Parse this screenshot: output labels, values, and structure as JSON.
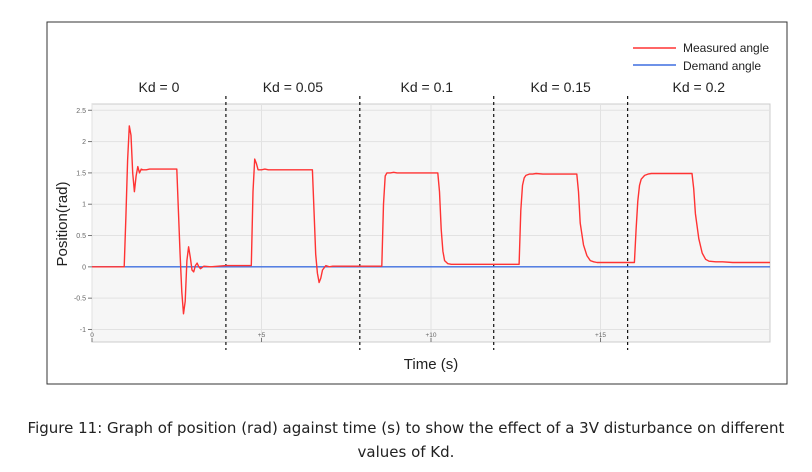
{
  "chart_data": {
    "type": "line",
    "title": "",
    "xlabel": "Time (s)",
    "ylabel": "Position(rad)",
    "xlim": [
      0,
      20
    ],
    "ylim": [
      -1.2,
      2.6
    ],
    "grid": true,
    "legend_position": "top-right",
    "x_ticks": [
      {
        "value": 0,
        "label": "0"
      },
      {
        "value": 5,
        "label": "+5"
      },
      {
        "value": 10,
        "label": "+10"
      },
      {
        "value": 15,
        "label": "+15"
      }
    ],
    "y_ticks": [
      {
        "value": 2.5,
        "label": "2.5"
      },
      {
        "value": 2,
        "label": "2"
      },
      {
        "value": 1.5,
        "label": "1.5"
      },
      {
        "value": 1,
        "label": "1"
      },
      {
        "value": 0.5,
        "label": "0.5"
      },
      {
        "value": 0,
        "label": "0"
      },
      {
        "value": -0.5,
        "label": "-0.5"
      },
      {
        "value": -1,
        "label": "-1"
      }
    ],
    "segments": [
      {
        "label": "Kd = 0",
        "start": 0,
        "end": 3.95
      },
      {
        "label": "Kd = 0.05",
        "start": 3.95,
        "end": 7.9
      },
      {
        "label": "Kd = 0.1",
        "start": 7.9,
        "end": 11.85
      },
      {
        "label": "Kd = 0.15",
        "start": 11.85,
        "end": 15.8
      },
      {
        "label": "Kd = 0.2",
        "start": 15.8,
        "end": 20
      }
    ],
    "series": [
      {
        "name": "Measured angle",
        "color": "#ff3333",
        "x": [
          0,
          0.95,
          1.0,
          1.05,
          1.1,
          1.15,
          1.2,
          1.25,
          1.3,
          1.35,
          1.4,
          1.45,
          1.5,
          1.6,
          1.7,
          2.5,
          2.55,
          2.6,
          2.65,
          2.7,
          2.75,
          2.8,
          2.85,
          2.9,
          2.95,
          3.0,
          3.05,
          3.1,
          3.15,
          3.2,
          3.3,
          3.5,
          3.95,
          4.7,
          4.75,
          4.8,
          4.85,
          4.9,
          5.0,
          5.1,
          5.2,
          6.5,
          6.55,
          6.6,
          6.65,
          6.7,
          6.75,
          6.8,
          6.9,
          7.0,
          7.1,
          7.2,
          7.9,
          8.55,
          8.6,
          8.65,
          8.7,
          8.8,
          8.9,
          9.0,
          10.2,
          10.25,
          10.3,
          10.35,
          10.4,
          10.5,
          10.6,
          10.7,
          11.85,
          12.6,
          12.65,
          12.7,
          12.75,
          12.8,
          12.9,
          13.0,
          13.1,
          13.3,
          14.3,
          14.35,
          14.4,
          14.5,
          14.6,
          14.7,
          14.8,
          14.9,
          15.0,
          15.8,
          16.0,
          16.05,
          16.1,
          16.15,
          16.2,
          16.3,
          16.4,
          16.5,
          16.7,
          16.9,
          17.7,
          17.75,
          17.8,
          17.9,
          18.0,
          18.1,
          18.2,
          18.4,
          18.6,
          18.9,
          20.0
        ],
        "y": [
          0.0,
          0.0,
          0.8,
          1.7,
          2.25,
          2.1,
          1.5,
          1.2,
          1.45,
          1.6,
          1.5,
          1.56,
          1.55,
          1.55,
          1.56,
          1.56,
          0.9,
          0.2,
          -0.4,
          -0.75,
          -0.55,
          0.1,
          0.32,
          0.15,
          -0.05,
          -0.08,
          0.02,
          0.06,
          0.0,
          -0.03,
          0.01,
          0.0,
          0.02,
          0.02,
          1.2,
          1.72,
          1.65,
          1.55,
          1.55,
          1.56,
          1.55,
          1.55,
          0.9,
          0.2,
          -0.1,
          -0.25,
          -0.18,
          -0.05,
          0.02,
          0.0,
          0.01,
          0.01,
          0.01,
          0.01,
          1.0,
          1.45,
          1.5,
          1.5,
          1.51,
          1.5,
          1.5,
          1.2,
          0.6,
          0.25,
          0.1,
          0.05,
          0.04,
          0.04,
          0.04,
          0.04,
          0.9,
          1.3,
          1.42,
          1.46,
          1.48,
          1.48,
          1.49,
          1.48,
          1.48,
          1.2,
          0.7,
          0.35,
          0.18,
          0.1,
          0.08,
          0.07,
          0.07,
          0.07,
          0.07,
          0.6,
          1.05,
          1.3,
          1.4,
          1.46,
          1.48,
          1.49,
          1.49,
          1.49,
          1.49,
          1.25,
          0.85,
          0.45,
          0.22,
          0.12,
          0.09,
          0.08,
          0.08,
          0.07,
          0.07
        ]
      },
      {
        "name": "Demand angle",
        "color": "#3f6fe0",
        "x": [
          0,
          20
        ],
        "y": [
          0.0,
          0.0
        ]
      }
    ]
  },
  "caption": {
    "line1": "Figure 11: Graph of position (rad) against time (s) to show the effect of a 3V disturbance on different",
    "line2": "values of Kd."
  }
}
